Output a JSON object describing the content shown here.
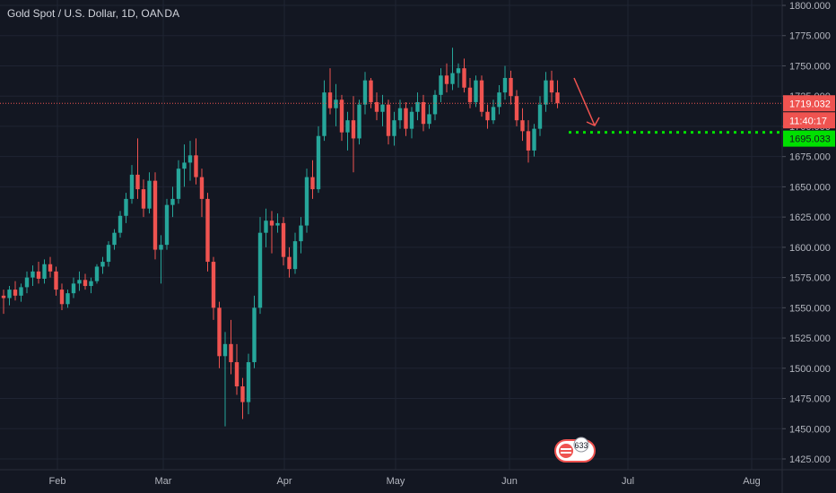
{
  "header": {
    "title": "Gold Spot / U.S. Dollar, 1D, OANDA"
  },
  "price_tags": {
    "current_price": "1719.032",
    "countdown": "11:40:17",
    "target": "1695.033"
  },
  "badge": {
    "count": "633"
  },
  "colors": {
    "background": "#131722",
    "up": "#26a69a",
    "down": "#ef5350",
    "grid": "#1f2433",
    "target_line": "#00e000",
    "current_line": "#ef5350"
  },
  "chart_data": {
    "type": "candlestick",
    "title": "Gold Spot / U.S. Dollar, 1D, OANDA",
    "ylim": [
      1420,
      1800
    ],
    "y_ticks": [
      1425,
      1450,
      1475,
      1500,
      1525,
      1550,
      1575,
      1600,
      1625,
      1650,
      1675,
      1700,
      1725,
      1750,
      1775,
      1800
    ],
    "y_tick_labels": [
      "1425.000",
      "1450.000",
      "1475.000",
      "1500.000",
      "1525.000",
      "1550.000",
      "1575.000",
      "1600.000",
      "1625.000",
      "1650.000",
      "1675.000",
      "1700.000",
      "1725.000",
      "1750.000",
      "1775.000",
      "1800.000"
    ],
    "x_labels": [
      "Feb",
      "Mar",
      "Apr",
      "May",
      "Jun",
      "Jul",
      "Aug"
    ],
    "current_price": 1719.032,
    "target_level": 1695.033,
    "candles": [
      [
        1560,
        1565,
        1545,
        1558
      ],
      [
        1558,
        1568,
        1552,
        1565
      ],
      [
        1565,
        1572,
        1556,
        1560
      ],
      [
        1560,
        1570,
        1555,
        1567
      ],
      [
        1567,
        1580,
        1562,
        1575
      ],
      [
        1575,
        1585,
        1568,
        1580
      ],
      [
        1580,
        1588,
        1570,
        1574
      ],
      [
        1574,
        1590,
        1570,
        1586
      ],
      [
        1586,
        1592,
        1575,
        1580
      ],
      [
        1580,
        1584,
        1560,
        1565
      ],
      [
        1565,
        1570,
        1548,
        1553
      ],
      [
        1553,
        1565,
        1550,
        1562
      ],
      [
        1562,
        1575,
        1558,
        1570
      ],
      [
        1570,
        1580,
        1564,
        1573
      ],
      [
        1573,
        1578,
        1565,
        1568
      ],
      [
        1568,
        1575,
        1562,
        1572
      ],
      [
        1572,
        1586,
        1570,
        1584
      ],
      [
        1584,
        1592,
        1578,
        1588
      ],
      [
        1588,
        1605,
        1584,
        1602
      ],
      [
        1602,
        1615,
        1598,
        1612
      ],
      [
        1612,
        1630,
        1608,
        1626
      ],
      [
        1626,
        1645,
        1620,
        1640
      ],
      [
        1640,
        1668,
        1636,
        1660
      ],
      [
        1660,
        1690,
        1640,
        1648
      ],
      [
        1648,
        1656,
        1625,
        1632
      ],
      [
        1632,
        1662,
        1628,
        1655
      ],
      [
        1655,
        1662,
        1590,
        1598
      ],
      [
        1598,
        1610,
        1570,
        1602
      ],
      [
        1602,
        1640,
        1598,
        1635
      ],
      [
        1635,
        1650,
        1625,
        1640
      ],
      [
        1640,
        1672,
        1636,
        1665
      ],
      [
        1665,
        1685,
        1650,
        1670
      ],
      [
        1670,
        1688,
        1655,
        1676
      ],
      [
        1676,
        1690,
        1652,
        1658
      ],
      [
        1658,
        1665,
        1625,
        1640
      ],
      [
        1640,
        1645,
        1580,
        1588
      ],
      [
        1588,
        1592,
        1540,
        1550
      ],
      [
        1550,
        1555,
        1500,
        1510
      ],
      [
        1510,
        1530,
        1452,
        1520
      ],
      [
        1520,
        1540,
        1495,
        1505
      ],
      [
        1505,
        1520,
        1478,
        1485
      ],
      [
        1485,
        1492,
        1458,
        1472
      ],
      [
        1472,
        1512,
        1462,
        1505
      ],
      [
        1505,
        1560,
        1500,
        1550
      ],
      [
        1550,
        1625,
        1545,
        1612
      ],
      [
        1612,
        1632,
        1600,
        1622
      ],
      [
        1622,
        1630,
        1595,
        1618
      ],
      [
        1618,
        1628,
        1612,
        1620
      ],
      [
        1620,
        1625,
        1585,
        1592
      ],
      [
        1592,
        1600,
        1575,
        1582
      ],
      [
        1582,
        1612,
        1578,
        1605
      ],
      [
        1605,
        1625,
        1595,
        1618
      ],
      [
        1618,
        1665,
        1612,
        1658
      ],
      [
        1658,
        1672,
        1640,
        1648
      ],
      [
        1648,
        1700,
        1645,
        1692
      ],
      [
        1692,
        1738,
        1688,
        1728
      ],
      [
        1728,
        1748,
        1710,
        1715
      ],
      [
        1715,
        1735,
        1700,
        1722
      ],
      [
        1722,
        1726,
        1688,
        1695
      ],
      [
        1695,
        1712,
        1680,
        1705
      ],
      [
        1705,
        1725,
        1662,
        1690
      ],
      [
        1690,
        1722,
        1685,
        1718
      ],
      [
        1718,
        1745,
        1710,
        1738
      ],
      [
        1738,
        1740,
        1715,
        1720
      ],
      [
        1720,
        1728,
        1705,
        1712
      ],
      [
        1712,
        1726,
        1700,
        1718
      ],
      [
        1718,
        1722,
        1685,
        1692
      ],
      [
        1692,
        1712,
        1684,
        1705
      ],
      [
        1705,
        1722,
        1698,
        1715
      ],
      [
        1715,
        1720,
        1692,
        1698
      ],
      [
        1698,
        1716,
        1690,
        1712
      ],
      [
        1712,
        1728,
        1705,
        1720
      ],
      [
        1720,
        1726,
        1696,
        1702
      ],
      [
        1702,
        1718,
        1698,
        1710
      ],
      [
        1710,
        1730,
        1705,
        1726
      ],
      [
        1726,
        1748,
        1720,
        1742
      ],
      [
        1742,
        1752,
        1728,
        1735
      ],
      [
        1735,
        1765,
        1730,
        1744
      ],
      [
        1744,
        1752,
        1732,
        1748
      ],
      [
        1748,
        1756,
        1728,
        1732
      ],
      [
        1732,
        1740,
        1715,
        1720
      ],
      [
        1720,
        1742,
        1716,
        1738
      ],
      [
        1738,
        1742,
        1708,
        1712
      ],
      [
        1712,
        1718,
        1698,
        1705
      ],
      [
        1705,
        1722,
        1702,
        1716
      ],
      [
        1716,
        1734,
        1710,
        1728
      ],
      [
        1728,
        1750,
        1722,
        1740
      ],
      [
        1740,
        1746,
        1718,
        1725
      ],
      [
        1725,
        1730,
        1700,
        1705
      ],
      [
        1705,
        1715,
        1688,
        1696
      ],
      [
        1696,
        1705,
        1670,
        1680
      ],
      [
        1680,
        1702,
        1675,
        1698
      ],
      [
        1698,
        1725,
        1692,
        1718
      ],
      [
        1718,
        1745,
        1712,
        1738
      ],
      [
        1738,
        1746,
        1720,
        1728
      ],
      [
        1728,
        1738,
        1715,
        1719
      ]
    ]
  }
}
